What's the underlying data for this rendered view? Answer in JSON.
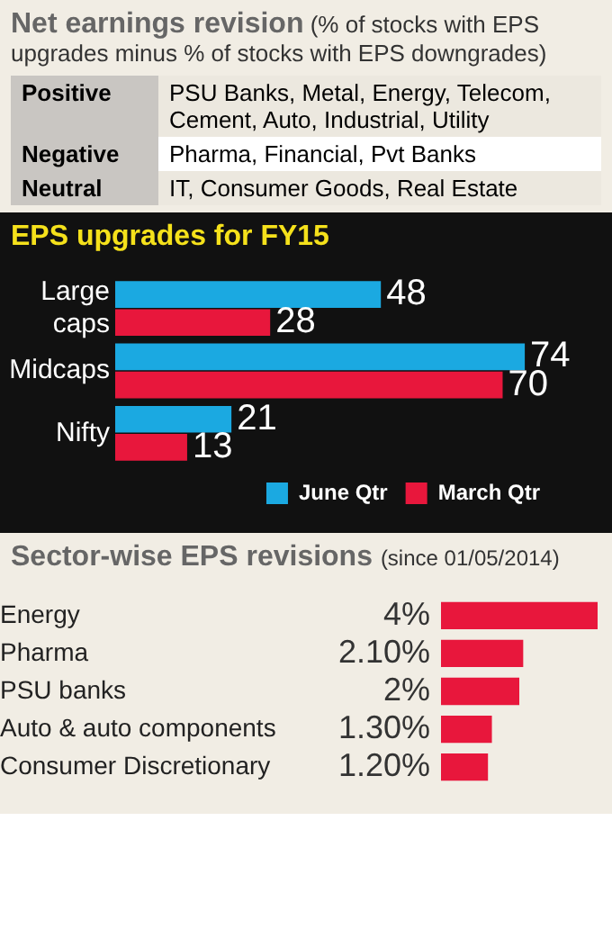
{
  "chart_data": [
    {
      "type": "other",
      "title": "Net earnings revision",
      "subtitle": "(% of stocks with EPS upgrades minus % of stocks with EPS downgrades)",
      "annotations": [
        "Positive",
        "PSU Banks, Metal, Energy, Telecom, Cement, Auto, Industrial, Utility",
        "Negative",
        "Pharma, Financial, Pvt Banks",
        "Neutral",
        "IT, Consumer Goods, Real Estate"
      ]
    },
    {
      "type": "bar",
      "orientation": "horizontal",
      "title": "EPS upgrades for FY15",
      "categories": [
        "Large caps",
        "Midcaps",
        "Nifty"
      ],
      "series": [
        {
          "name": "June Qtr",
          "color": "#1ba9e1",
          "values": [
            48,
            74,
            21
          ]
        },
        {
          "name": "March Qtr",
          "color": "#e8173c",
          "values": [
            28,
            70,
            13
          ]
        }
      ],
      "data_labels": true,
      "legend": "bottom right",
      "tick_labels": "y",
      "grid": false
    },
    {
      "type": "bar",
      "orientation": "horizontal",
      "title": "Sector-wise EPS revisions",
      "subtitle": "(since 01/05/2014)",
      "categories": [
        "Energy",
        "Pharma",
        "PSU banks",
        "Auto & auto components",
        "Consumer Discretionary"
      ],
      "values": [
        4,
        2.1,
        2,
        1.3,
        1.2
      ],
      "value_labels": [
        "4%",
        "2.10%",
        "2%",
        "1.30%",
        "1.20%"
      ],
      "color": "#e8173c",
      "tick_labels": "y",
      "grid": false
    }
  ]
}
